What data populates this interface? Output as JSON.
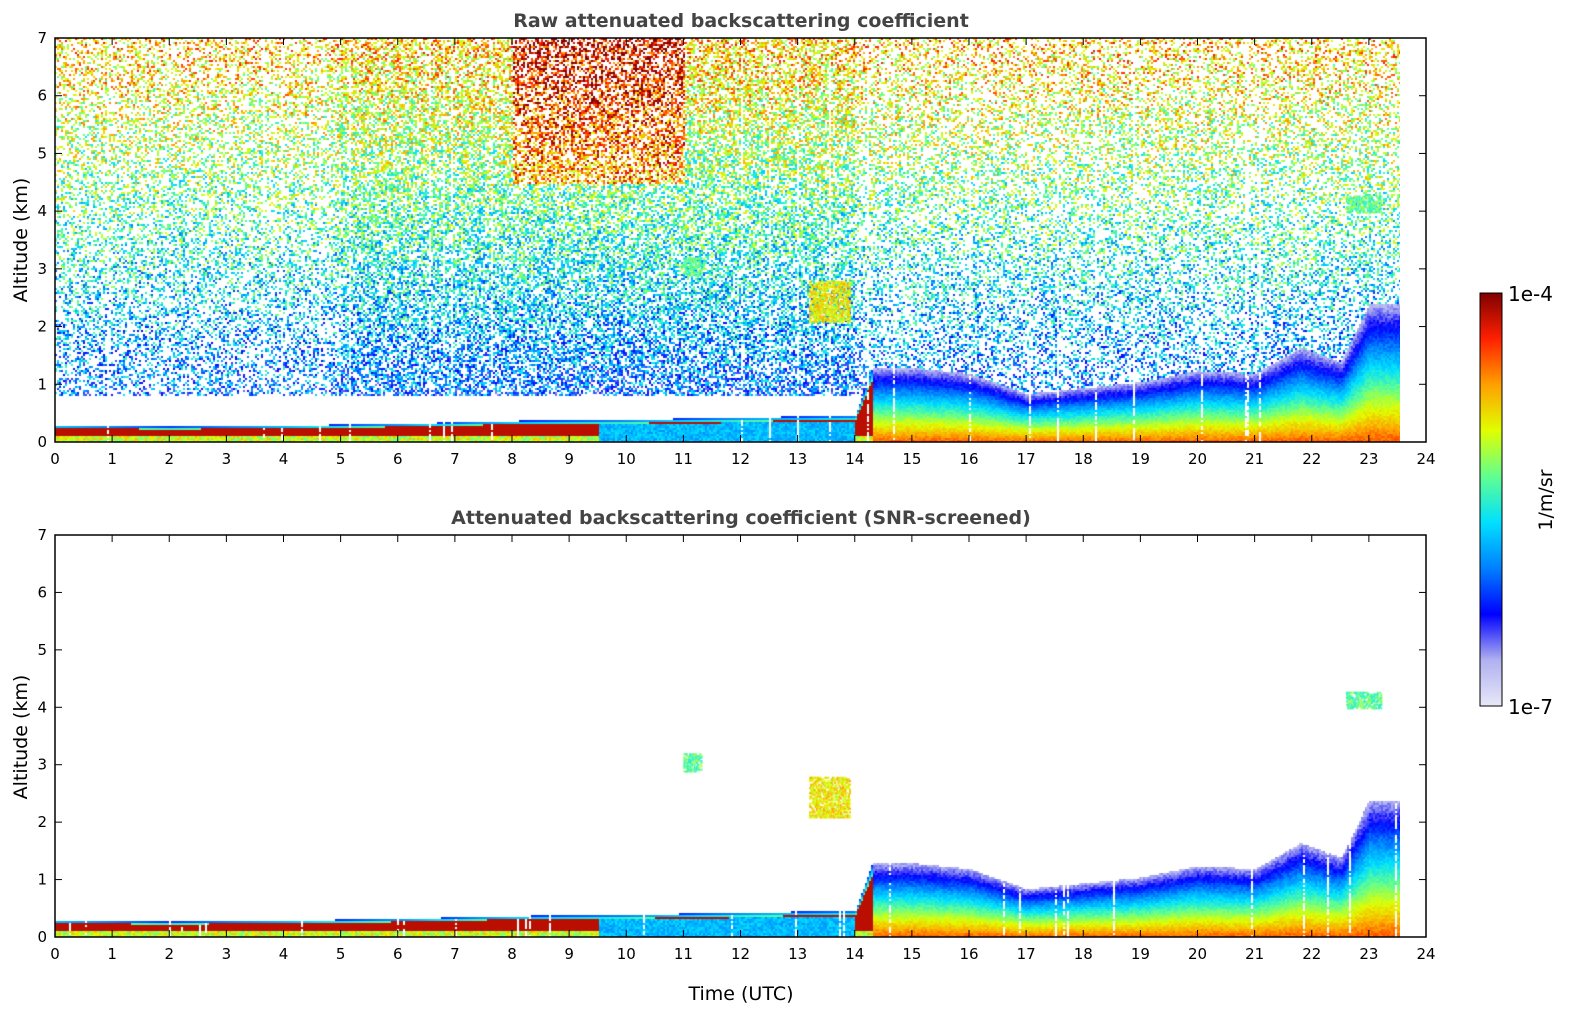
{
  "chart_data": [
    {
      "type": "heatmap",
      "title": "Raw attenuated backscattering coefficient",
      "xlabel": "",
      "ylabel": "Altitude (km)",
      "xlim": [
        0,
        24
      ],
      "ylim": [
        0,
        7
      ],
      "xticks": [
        "0",
        "1",
        "2",
        "3",
        "4",
        "5",
        "6",
        "7",
        "8",
        "9",
        "10",
        "11",
        "12",
        "13",
        "14",
        "15",
        "16",
        "17",
        "18",
        "19",
        "20",
        "21",
        "22",
        "23",
        "24"
      ],
      "yticks": [
        "0",
        "1",
        "2",
        "3",
        "4",
        "5",
        "6",
        "7"
      ],
      "data_end_time": 23.55,
      "boundary_layer_top_km": [
        {
          "t": 0,
          "z": 0.3
        },
        {
          "t": 2,
          "z": 0.28
        },
        {
          "t": 4,
          "z": 0.3
        },
        {
          "t": 6,
          "z": 0.33
        },
        {
          "t": 8,
          "z": 0.38
        },
        {
          "t": 10,
          "z": 0.4
        },
        {
          "t": 12,
          "z": 0.44
        },
        {
          "t": 14,
          "z": 0.47
        },
        {
          "t": 14.3,
          "z": 1.3
        },
        {
          "t": 15,
          "z": 1.3
        },
        {
          "t": 16,
          "z": 1.2
        },
        {
          "t": 17,
          "z": 0.85
        },
        {
          "t": 18,
          "z": 0.95
        },
        {
          "t": 19,
          "z": 1.05
        },
        {
          "t": 20,
          "z": 1.25
        },
        {
          "t": 21,
          "z": 1.2
        },
        {
          "t": 21.8,
          "z": 1.65
        },
        {
          "t": 22.5,
          "z": 1.4
        },
        {
          "t": 23,
          "z": 2.4
        },
        {
          "t": 23.55,
          "z": 2.4
        }
      ],
      "features": [
        {
          "name": "aerosol layer",
          "t": [
            13.2,
            13.9
          ],
          "z": [
            2.1,
            2.8
          ],
          "level": "high"
        },
        {
          "name": "cloud",
          "t": [
            11.0,
            11.3
          ],
          "z": [
            2.9,
            3.2
          ],
          "level": "medium"
        },
        {
          "name": "cloud",
          "t": [
            22.6,
            23.2
          ],
          "z": [
            4.0,
            4.3
          ],
          "level": "medium"
        }
      ]
    },
    {
      "type": "heatmap",
      "title": "Attenuated backscattering coefficient (SNR-screened)",
      "xlabel": "Time (UTC)",
      "ylabel": "Altitude (km)",
      "xlim": [
        0,
        24
      ],
      "ylim": [
        0,
        7
      ],
      "xticks": [
        "0",
        "1",
        "2",
        "3",
        "4",
        "5",
        "6",
        "7",
        "8",
        "9",
        "10",
        "11",
        "12",
        "13",
        "14",
        "15",
        "16",
        "17",
        "18",
        "19",
        "20",
        "21",
        "22",
        "23",
        "24"
      ],
      "yticks": [
        "0",
        "1",
        "2",
        "3",
        "4",
        "5",
        "6",
        "7"
      ],
      "data_end_time": 23.55
    }
  ],
  "colorbar": {
    "max_label": "1e-4",
    "min_label": "1e-7",
    "unit_label": "1/m/sr",
    "colors": [
      "#e8e8f8",
      "#b0b0f0",
      "#0000ff",
      "#0080ff",
      "#00e0ff",
      "#60ff90",
      "#e0ff00",
      "#ffa000",
      "#ff2000",
      "#800000"
    ]
  }
}
